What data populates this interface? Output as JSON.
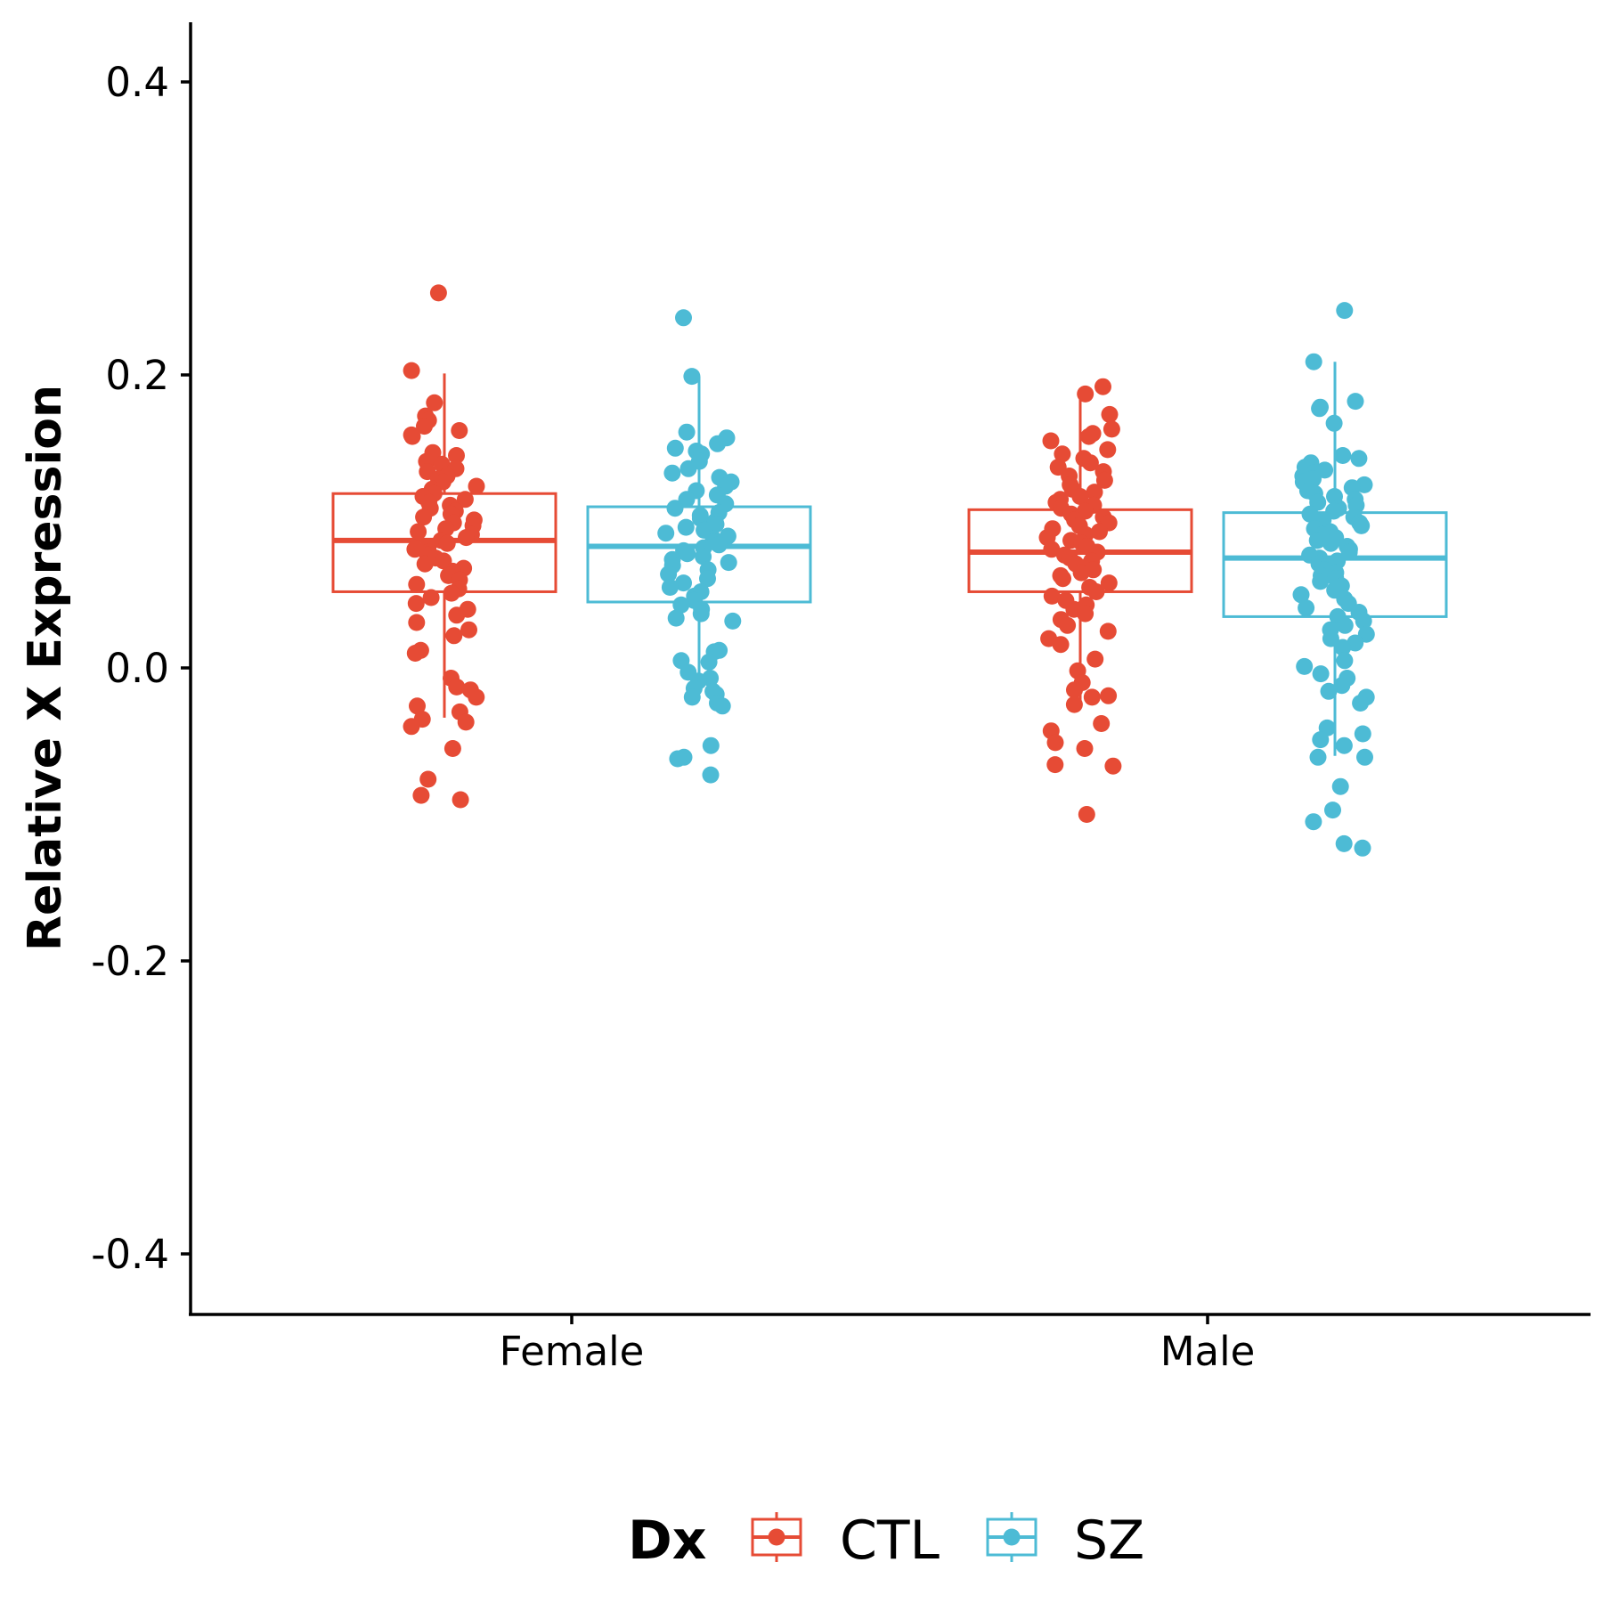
{
  "chart_data": {
    "type": "boxplot",
    "ylabel": "Relative X Expression",
    "ylim": [
      -0.44,
      0.44
    ],
    "y_ticks": [
      0.4,
      0.2,
      0.0,
      -0.2,
      -0.4
    ],
    "y_tick_labels": [
      "0.4",
      "0.2",
      "0.0",
      "-0.2",
      "-0.4"
    ],
    "categories": [
      "Female",
      "Male"
    ],
    "grid": false,
    "legend": {
      "title": "Dx",
      "position": "bottom",
      "items": [
        {
          "label": "CTL",
          "color": "#E64B35"
        },
        {
          "label": "SZ",
          "color": "#4DBBD5"
        }
      ]
    },
    "series": [
      {
        "name": "CTL",
        "color": "#E64B35",
        "boxes": [
          {
            "category": "Female",
            "q1": 0.052,
            "median": 0.087,
            "q3": 0.119,
            "whisker_low": -0.034,
            "whisker_high": 0.201
          },
          {
            "category": "Male",
            "q1": 0.052,
            "median": 0.079,
            "q3": 0.108,
            "whisker_low": -0.025,
            "whisker_high": 0.19
          }
        ],
        "points": {
          "Female": [
            0.256,
            0.203,
            0.181,
            0.172,
            0.169,
            0.165,
            0.162,
            0.159,
            0.158,
            0.147,
            0.145,
            0.141,
            0.139,
            0.136,
            0.134,
            0.131,
            0.129,
            0.127,
            0.124,
            0.122,
            0.119,
            0.117,
            0.115,
            0.113,
            0.111,
            0.109,
            0.107,
            0.105,
            0.103,
            0.101,
            0.099,
            0.097,
            0.095,
            0.093,
            0.091,
            0.089,
            0.087,
            0.085,
            0.083,
            0.081,
            0.079,
            0.077,
            0.075,
            0.073,
            0.071,
            0.068,
            0.066,
            0.063,
            0.06,
            0.057,
            0.054,
            0.051,
            0.048,
            0.044,
            0.04,
            0.036,
            0.031,
            0.026,
            0.022,
            0.012,
            0.01,
            -0.007,
            -0.013,
            -0.015,
            -0.02,
            -0.026,
            -0.03,
            -0.035,
            -0.037,
            -0.04,
            -0.055,
            -0.076,
            -0.087,
            -0.09
          ],
          "Male": [
            0.192,
            0.187,
            0.173,
            0.163,
            0.16,
            0.158,
            0.155,
            0.149,
            0.146,
            0.143,
            0.14,
            0.137,
            0.134,
            0.131,
            0.128,
            0.125,
            0.122,
            0.12,
            0.117,
            0.115,
            0.113,
            0.111,
            0.109,
            0.107,
            0.105,
            0.103,
            0.101,
            0.099,
            0.097,
            0.095,
            0.093,
            0.091,
            0.089,
            0.087,
            0.085,
            0.083,
            0.081,
            0.079,
            0.077,
            0.075,
            0.073,
            0.071,
            0.069,
            0.067,
            0.065,
            0.063,
            0.061,
            0.058,
            0.055,
            0.052,
            0.049,
            0.046,
            0.043,
            0.04,
            0.037,
            0.033,
            0.029,
            0.025,
            0.02,
            0.016,
            0.006,
            -0.002,
            -0.01,
            -0.015,
            -0.019,
            -0.02,
            -0.025,
            -0.038,
            -0.043,
            -0.051,
            -0.055,
            -0.066,
            -0.067,
            -0.1
          ]
        }
      },
      {
        "name": "SZ",
        "color": "#4DBBD5",
        "boxes": [
          {
            "category": "Female",
            "q1": 0.045,
            "median": 0.083,
            "q3": 0.11,
            "whisker_low": -0.015,
            "whisker_high": 0.199
          },
          {
            "category": "Male",
            "q1": 0.035,
            "median": 0.075,
            "q3": 0.106,
            "whisker_low": -0.06,
            "whisker_high": 0.209
          }
        ],
        "points": {
          "Female": [
            0.239,
            0.199,
            0.161,
            0.157,
            0.153,
            0.15,
            0.148,
            0.146,
            0.141,
            0.136,
            0.133,
            0.13,
            0.127,
            0.124,
            0.121,
            0.118,
            0.115,
            0.112,
            0.109,
            0.106,
            0.104,
            0.102,
            0.1,
            0.098,
            0.096,
            0.094,
            0.092,
            0.09,
            0.088,
            0.086,
            0.084,
            0.082,
            0.08,
            0.078,
            0.076,
            0.074,
            0.072,
            0.07,
            0.067,
            0.064,
            0.061,
            0.058,
            0.055,
            0.052,
            0.049,
            0.046,
            0.043,
            0.04,
            0.037,
            0.034,
            0.032,
            0.012,
            0.011,
            0.005,
            0.004,
            -0.003,
            -0.007,
            -0.009,
            -0.014,
            -0.016,
            -0.018,
            -0.02,
            -0.024,
            -0.026,
            -0.053,
            -0.061,
            -0.062,
            -0.073
          ],
          "Male": [
            0.244,
            0.209,
            0.182,
            0.178,
            0.177,
            0.167,
            0.145,
            0.143,
            0.14,
            0.137,
            0.135,
            0.133,
            0.131,
            0.129,
            0.127,
            0.125,
            0.123,
            0.121,
            0.119,
            0.117,
            0.115,
            0.113,
            0.111,
            0.109,
            0.107,
            0.105,
            0.103,
            0.101,
            0.099,
            0.097,
            0.095,
            0.093,
            0.091,
            0.089,
            0.087,
            0.085,
            0.083,
            0.081,
            0.079,
            0.077,
            0.075,
            0.073,
            0.071,
            0.069,
            0.067,
            0.065,
            0.063,
            0.061,
            0.059,
            0.056,
            0.053,
            0.05,
            0.047,
            0.044,
            0.041,
            0.038,
            0.035,
            0.032,
            0.029,
            0.026,
            0.023,
            0.02,
            0.017,
            0.014,
            0.005,
            0.001,
            -0.004,
            -0.007,
            -0.012,
            -0.016,
            -0.02,
            -0.024,
            -0.041,
            -0.045,
            -0.049,
            -0.053,
            -0.061,
            -0.061,
            -0.081,
            -0.097,
            -0.105,
            -0.12,
            -0.123
          ]
        }
      }
    ]
  }
}
